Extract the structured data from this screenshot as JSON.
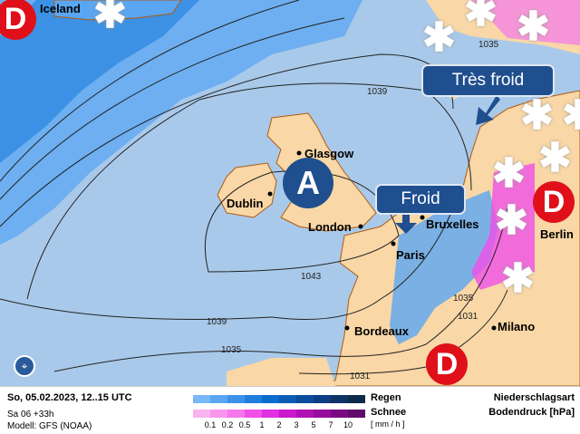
{
  "map": {
    "cities": [
      {
        "name": "Glasgow"
      },
      {
        "name": "Dublin"
      },
      {
        "name": "London"
      },
      {
        "name": "Bruxelles"
      },
      {
        "name": "Paris"
      },
      {
        "name": "Bordeaux"
      },
      {
        "name": "Milano"
      },
      {
        "name": "Berlin"
      },
      {
        "name": "Iceland"
      }
    ],
    "isobars": [
      "1035",
      "1039",
      "1043",
      "1039",
      "1035",
      "1031",
      "1035",
      "1031"
    ],
    "pressure_systems": {
      "high": "A",
      "low": "D"
    },
    "callouts": {
      "very_cold": "Très froid",
      "cold": "Froid"
    },
    "icons": [
      "snowflake-icon",
      "arrow-down-icon",
      "logo-icon"
    ],
    "colors": {
      "sea": "#a9c9ea",
      "land": "#f9d7a6",
      "high": "#1f4f8f",
      "low": "#e0101a"
    }
  },
  "footer": {
    "date": "So, 05.02.2023, 12..15 UTC",
    "run": "Sa 06 +33h",
    "model": "Modell: GFS (NOAA)",
    "rain_label": "Regen",
    "snow_label": "Schnee",
    "unit": "[ mm / h ]",
    "ticks": [
      "0.1",
      "0.2",
      "0.5",
      "1",
      "2",
      "3",
      "5",
      "7",
      "10"
    ],
    "rain_colors": [
      "#78b8f8",
      "#5aa6f2",
      "#3c92ea",
      "#1e7ee0",
      "#0c6ccc",
      "#0a5cb4",
      "#0a4c9c",
      "#0c3e84",
      "#0e3466",
      "#0c2a4c"
    ],
    "snow_colors": [
      "#f8b4f0",
      "#f896ee",
      "#f478ec",
      "#f050e8",
      "#e030e0",
      "#cc18cc",
      "#b010b4",
      "#960c9c",
      "#7a0a84",
      "#600a6a"
    ],
    "type_label": "Niederschlagsart",
    "pressure_label": "Bodendruck [hPa]"
  }
}
